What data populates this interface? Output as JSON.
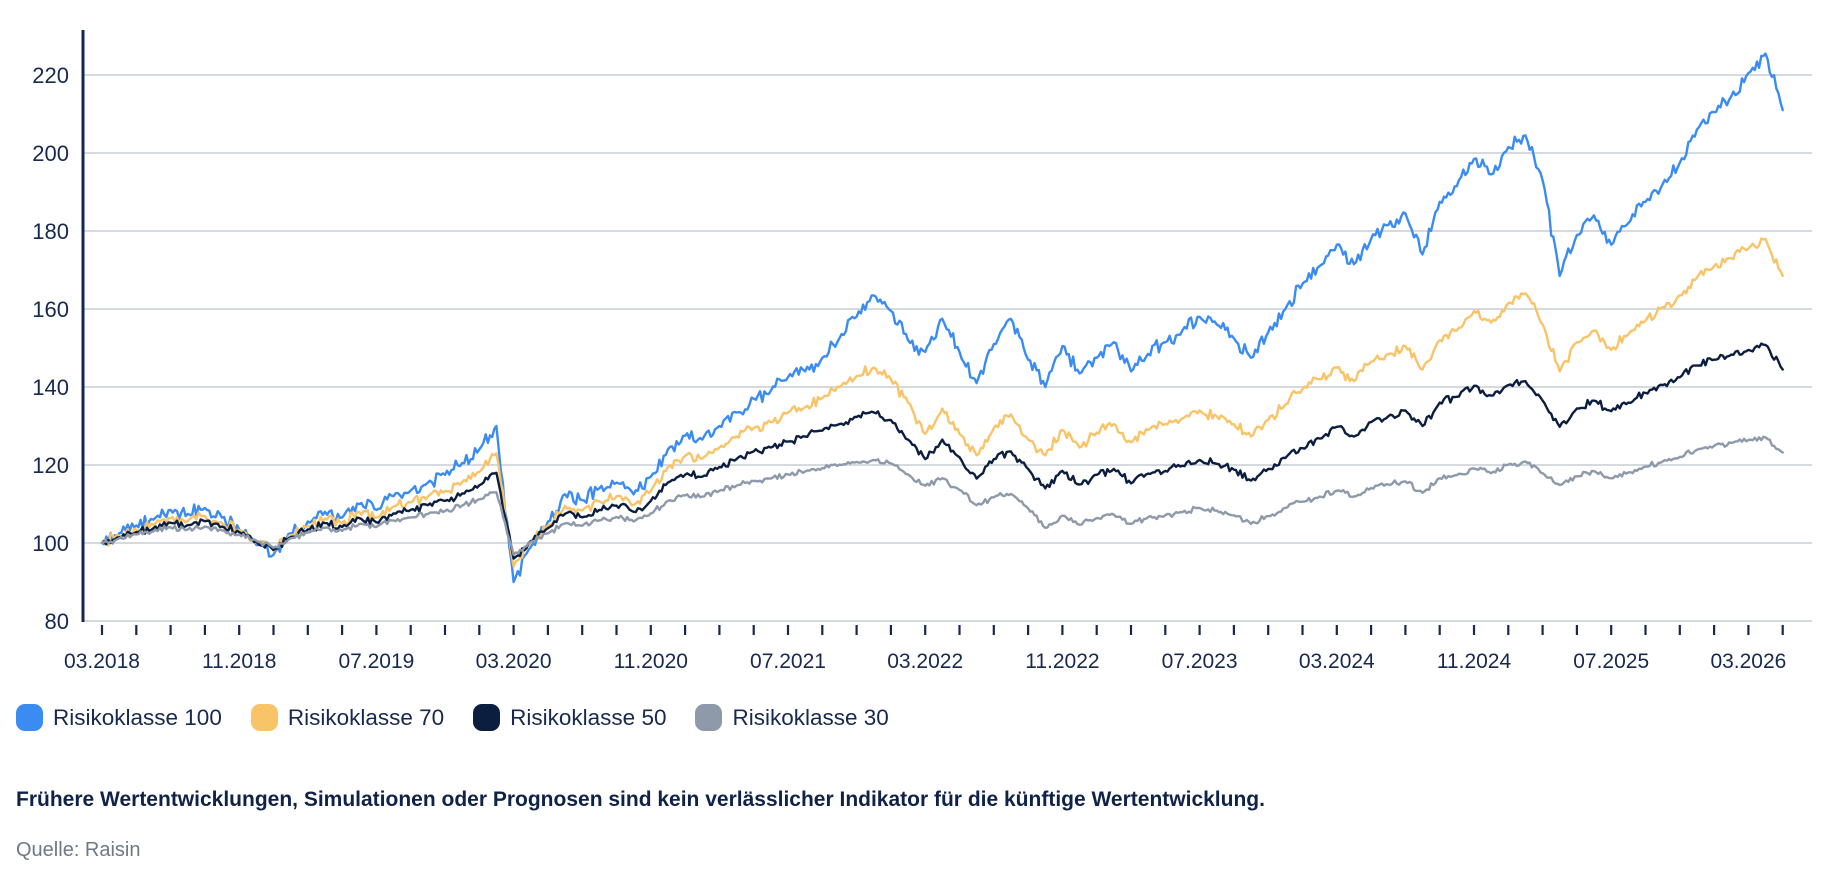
{
  "theme": {
    "background": "#FFFFFF",
    "axis_color": "#16294C",
    "label_color": "#17294E",
    "grid_color": "#C9CDD4",
    "disclaimer_color": "#0F2348",
    "source_color": "#6E7886"
  },
  "footer": {
    "disclaimer": "Frühere Wertentwicklungen, Simulationen oder Prognosen sind kein verlässlicher Indikator für die künftige Wertentwicklung.",
    "source": "Quelle: Raisin"
  },
  "chart_data": {
    "type": "line",
    "title": "",
    "grid": "horizontal",
    "legend_position": "bottom",
    "x_unit": "month",
    "x_start": "03.2018",
    "x_end": "05.2026",
    "ylim": [
      80,
      230
    ],
    "y_ticks": [
      80,
      100,
      120,
      140,
      160,
      180,
      200,
      220
    ],
    "x_labels": [
      "03.2018",
      "11.2018",
      "07.2019",
      "03.2020",
      "11.2020",
      "07.2021",
      "03.2022",
      "11.2022",
      "07.2023",
      "03.2024",
      "11.2024",
      "07.2025",
      "03.2026"
    ],
    "x_label_months": [
      0,
      8,
      16,
      24,
      32,
      40,
      48,
      56,
      64,
      72,
      80,
      88,
      96
    ],
    "minor_tick_every_months": 2,
    "series": [
      {
        "name": "Risikoklasse 100",
        "color": "#3B8CF2",
        "jitter": 2.0,
        "values": [
          100,
          102.5,
          104.5,
          106,
          108.5,
          107.5,
          109,
          106.5,
          103.5,
          99.5,
          97,
          102.5,
          105.5,
          108,
          106.5,
          110,
          108.5,
          112,
          113.5,
          115.5,
          117.5,
          120.5,
          124,
          130,
          90,
          99,
          105.5,
          112.5,
          111,
          114,
          115.5,
          112.5,
          117,
          124,
          127.5,
          126.5,
          130,
          133.5,
          137,
          139,
          142.5,
          144,
          147.5,
          152.5,
          158,
          163.5,
          159.5,
          152,
          149,
          157.5,
          149,
          141,
          151,
          157.5,
          147,
          140,
          150.5,
          143.5,
          147.5,
          151.5,
          144,
          148.5,
          151.5,
          154.5,
          158,
          156,
          152.5,
          147.5,
          154,
          160,
          166.5,
          171,
          176.5,
          171.5,
          178,
          181.5,
          184.5,
          174,
          187.5,
          191.5,
          198.5,
          194.5,
          201.5,
          204.5,
          193,
          168.5,
          179,
          184,
          176.5,
          182,
          187.5,
          192,
          197.5,
          206,
          210.5,
          214.5,
          220.5,
          225.5,
          211
        ]
      },
      {
        "name": "Risikoklasse 70",
        "color": "#F9C468",
        "jitter": 1.5,
        "values": [
          100,
          101.9,
          103.4,
          104.6,
          106.4,
          105.7,
          106.9,
          105.1,
          103.3,
          100,
          98,
          102,
          104.3,
          106.3,
          105.1,
          107.9,
          106.6,
          109.3,
          110.4,
          111.9,
          113.3,
          115.6,
          118.2,
          123,
          94,
          100,
          104.5,
          109.5,
          108.3,
          110.7,
          112,
          109.8,
          113.3,
          119.5,
          122.3,
          121.6,
          124.5,
          127.3,
          129.5,
          131,
          133.5,
          134.8,
          137.2,
          140,
          142.8,
          145,
          142,
          136,
          128,
          134.5,
          128,
          122.5,
          129.5,
          133,
          126.5,
          122.5,
          129,
          124.5,
          128.3,
          130.5,
          125.8,
          129,
          130.5,
          132,
          134,
          132.5,
          130.5,
          127.3,
          131.5,
          135.5,
          139.5,
          142,
          145,
          141.5,
          146.5,
          148.5,
          150.5,
          144.5,
          152,
          154.5,
          159.5,
          156.5,
          161.5,
          164,
          156,
          144,
          151.5,
          154.5,
          149.5,
          153.5,
          157,
          160.5,
          163.5,
          168,
          171,
          173,
          175.5,
          178,
          168.5
        ]
      },
      {
        "name": "Risikoklasse 50",
        "color": "#0C1E3F",
        "jitter": 1.1,
        "values": [
          100,
          101.5,
          102.8,
          103.8,
          105.2,
          104.6,
          105.6,
          104.2,
          102.8,
          100.3,
          98.2,
          101.5,
          103.5,
          105.1,
          104.1,
          106.4,
          105.3,
          107.6,
          108.5,
          109.7,
          110.8,
          112.7,
          114.8,
          118,
          96,
          100.5,
          103.8,
          107.5,
          106.6,
          108.5,
          109.6,
          108,
          110.8,
          115.5,
          117.5,
          117,
          119.5,
          121.5,
          123.5,
          124.5,
          126,
          127.3,
          128.8,
          130.5,
          132.3,
          133.5,
          131.5,
          126.5,
          121.5,
          126.5,
          122,
          116.5,
          121.5,
          123.5,
          119,
          114,
          118.5,
          115,
          117.5,
          119,
          115.3,
          117.8,
          118.5,
          119.8,
          121.3,
          120.3,
          118.8,
          116,
          119,
          121.8,
          124.3,
          126.8,
          129.8,
          127.3,
          131,
          132.5,
          134,
          130,
          136,
          137.5,
          140.3,
          137.8,
          140.5,
          141.5,
          136.5,
          129.8,
          134.5,
          136.5,
          133.8,
          136,
          138.5,
          140.5,
          142.5,
          145.5,
          147,
          148.3,
          149.5,
          150.8,
          144.5
        ]
      },
      {
        "name": "Risikoklasse 30",
        "color": "#8E99A9",
        "jitter": 0.8,
        "values": [
          100,
          101.2,
          102.2,
          103,
          104,
          103.5,
          104.2,
          103.2,
          102.2,
          100.6,
          98.8,
          101.2,
          102.7,
          103.9,
          103.1,
          104.9,
          104.1,
          105.8,
          106.5,
          107.4,
          108.2,
          109.6,
          111.2,
          113,
          97,
          100.3,
          102.5,
          105,
          104.4,
          105.8,
          106.7,
          105.5,
          107.6,
          110.8,
          112.2,
          111.9,
          113.4,
          114.7,
          115.9,
          116.5,
          117.6,
          118.3,
          119.2,
          120.1,
          120.8,
          121.3,
          120.4,
          117.6,
          114.7,
          116.6,
          113.6,
          109.7,
          111.7,
          112.6,
          108.9,
          103.9,
          107,
          104.7,
          106.4,
          107.3,
          104.9,
          106.6,
          107.1,
          107.9,
          109,
          108.3,
          107.1,
          104.9,
          106.9,
          109,
          110.6,
          111.9,
          113.4,
          111.9,
          114.1,
          115,
          115.8,
          112.9,
          116.6,
          117.4,
          119.1,
          117.9,
          120.1,
          120.9,
          117.9,
          114.9,
          117.1,
          118.4,
          116.6,
          118.1,
          119.6,
          120.9,
          122.1,
          123.9,
          124.9,
          125.7,
          126.4,
          127.1,
          123.2
        ]
      }
    ]
  }
}
